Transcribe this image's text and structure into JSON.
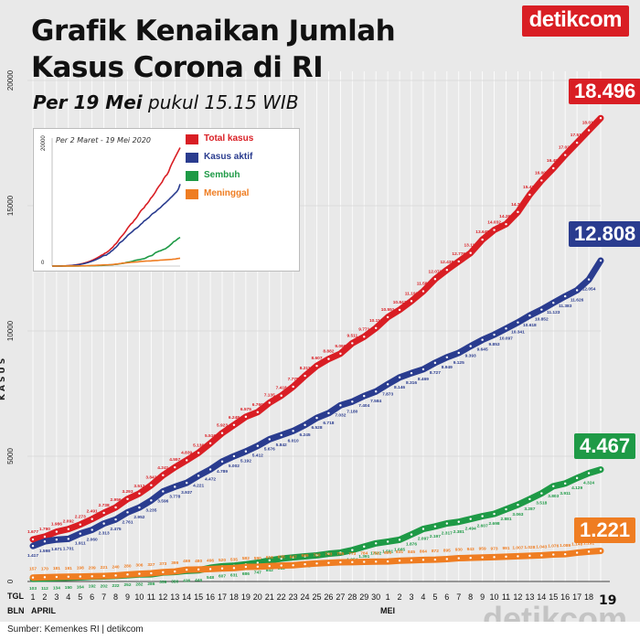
{
  "header": {
    "title_line1": "Grafik Kenaikan Jumlah",
    "title_line2": "Kasus Corona di RI",
    "subtitle_bold": "Per 19 Mei",
    "subtitle_rest": " pukul 15.15 WIB",
    "logo": "detikcom"
  },
  "inset": {
    "subtitle": "Per 2 Maret - 19 Mei 2020",
    "ytick_top": "20000",
    "ytick_bottom": "0",
    "legend": [
      {
        "label": "Total kasus",
        "color": "#d91e24"
      },
      {
        "label": "Kasus aktif",
        "color": "#2a3c8f"
      },
      {
        "label": "Sembuh",
        "color": "#1e9a46"
      },
      {
        "label": "Meninggal",
        "color": "#ef7d22"
      }
    ]
  },
  "axis": {
    "ylabel": "KASUS",
    "tgl_label": "TGL",
    "bln_label": "BLN",
    "month_april": "APRIL",
    "month_mei": "MEI",
    "last_day": "19"
  },
  "callouts": {
    "total": "18.496",
    "active": "12.808",
    "recovered": "4.467",
    "deaths": "1.221"
  },
  "footer": {
    "source": "Sumber: Kemenkes RI | detikcom",
    "watermark": "detikcom"
  },
  "chart_data": {
    "type": "line",
    "ylabel": "KASUS",
    "ylim": [
      0,
      20000
    ],
    "yticks": [
      0,
      5000,
      10000,
      15000,
      20000
    ],
    "x": [
      "1",
      "2",
      "3",
      "4",
      "5",
      "6",
      "7",
      "8",
      "9",
      "10",
      "11",
      "12",
      "13",
      "14",
      "15",
      "16",
      "17",
      "18",
      "19",
      "20",
      "21",
      "22",
      "23",
      "24",
      "25",
      "26",
      "27",
      "28",
      "29",
      "30",
      "1",
      "2",
      "3",
      "4",
      "5",
      "6",
      "7",
      "8",
      "9",
      "10",
      "11",
      "12",
      "13",
      "14",
      "15",
      "16",
      "17",
      "18",
      "19"
    ],
    "series": [
      {
        "name": "Total kasus",
        "color": "#d91e24",
        "values": [
          1677,
          1790,
          1986,
          2092,
          2273,
          2491,
          2738,
          2956,
          3293,
          3512,
          3842,
          4241,
          4557,
          4839,
          5136,
          5516,
          5923,
          6248,
          6575,
          6760,
          7135,
          7418,
          7775,
          8211,
          8607,
          8882,
          9096,
          9511,
          9771,
          10118,
          10551,
          10843,
          11192,
          11587,
          12071,
          12438,
          12776,
          13112,
          13645,
          14032,
          14265,
          14749,
          15438,
          16006,
          16496,
          17025,
          17514,
          18010,
          18496
        ]
      },
      {
        "name": "Kasus aktif",
        "color": "#2a3c8f",
        "values": [
          1417,
          1598,
          1671,
          1701,
          1911,
          2060,
          2313,
          2475,
          2761,
          2952,
          3235,
          3596,
          3778,
          3937,
          4221,
          4472,
          4789,
          5002,
          5192,
          5412,
          5676,
          5842,
          6010,
          6245,
          6528,
          6718,
          7032,
          7180,
          7404,
          7584,
          7873,
          8146,
          8316,
          8469,
          8727,
          8949,
          9125,
          9393,
          9645,
          9853,
          10097,
          10341,
          10618,
          10852,
          11123,
          11383,
          11626,
          12054,
          12808
        ]
      },
      {
        "name": "Sembuh",
        "color": "#1e9a46",
        "values": [
          103,
          112,
          134,
          150,
          164,
          192,
          202,
          222,
          252,
          282,
          286,
          359,
          380,
          426,
          446,
          548,
          607,
          631,
          686,
          747,
          842,
          913,
          960,
          1002,
          1042,
          1107,
          1151,
          1254,
          1391,
          1522,
          1591,
          1665,
          1876,
          2097,
          2197,
          2317,
          2381,
          2494,
          2607,
          2698,
          2881,
          3063,
          3287,
          3518,
          3803,
          3911,
          4129,
          4324,
          4467
        ]
      },
      {
        "name": "Meninggal",
        "color": "#ef7d22",
        "values": [
          157,
          170,
          181,
          191,
          198,
          209,
          221,
          240,
          280,
          306,
          327,
          373,
          399,
          469,
          480,
          496,
          520,
          535,
          582,
          590,
          616,
          635,
          647,
          689,
          720,
          743,
          765,
          773,
          784,
          792,
          800,
          831,
          845,
          864,
          872,
          895,
          930,
          943,
          959,
          973,
          991,
          1007,
          1028,
          1043,
          1076,
          1089,
          1148,
          1191,
          1221
        ]
      }
    ]
  }
}
